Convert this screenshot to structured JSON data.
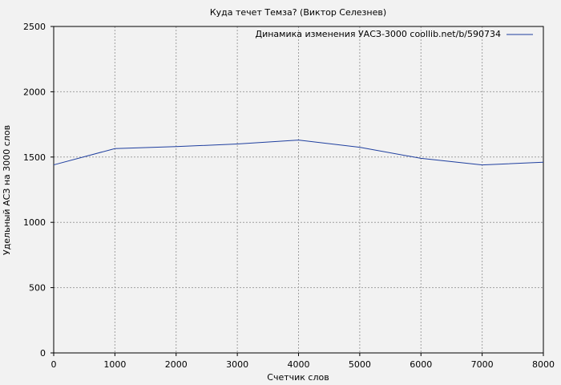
{
  "chart_data": {
    "type": "line",
    "title": "Куда течет Темза? (Виктор Селезнев)",
    "xlabel": "Счетчик слов",
    "ylabel": "Удельный АСЗ на 3000 слов",
    "xlim": [
      0,
      8000
    ],
    "ylim": [
      0,
      2500
    ],
    "x_ticks": [
      0,
      1000,
      2000,
      3000,
      4000,
      5000,
      6000,
      7000,
      8000
    ],
    "y_ticks": [
      0,
      500,
      1000,
      1500,
      2000,
      2500
    ],
    "grid": true,
    "legend_position": "top-right",
    "series": [
      {
        "name": "Динамика изменения УАСЗ-3000 coollib.net/b/590734",
        "color": "#1f3f9f",
        "x": [
          0,
          1000,
          2000,
          3000,
          4000,
          5000,
          6000,
          7000,
          8000
        ],
        "y": [
          1440,
          1565,
          1580,
          1600,
          1630,
          1575,
          1490,
          1440,
          1460
        ]
      }
    ]
  }
}
